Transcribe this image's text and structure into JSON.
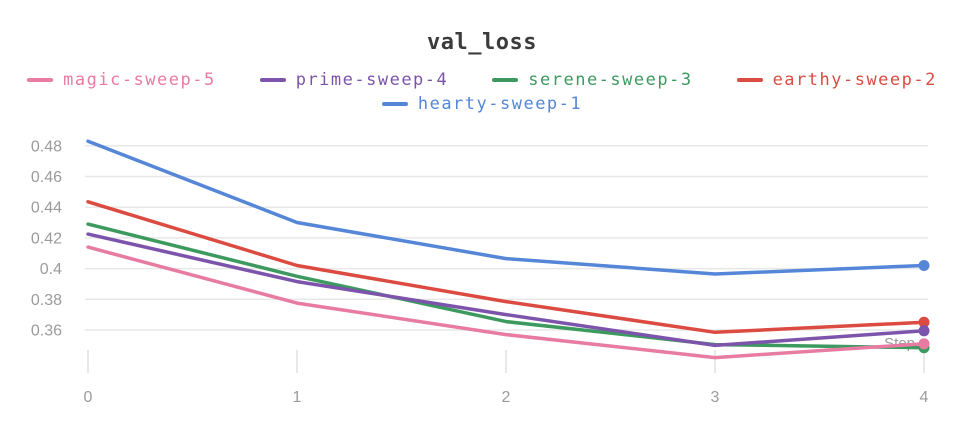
{
  "chart_data": {
    "type": "line",
    "title": "val_loss",
    "xlabel": "Step",
    "x": [
      0,
      1,
      2,
      3,
      4
    ],
    "xtick_labels": [
      "0",
      "1",
      "2",
      "3",
      "4"
    ],
    "ytick_labels": [
      "0.48",
      "0.46",
      "0.44",
      "0.42",
      "0.4",
      "0.38",
      "0.36"
    ],
    "xlim": [
      0,
      4
    ],
    "ylim": [
      0.335,
      0.488
    ],
    "grid": "horizontal",
    "legend_position": "top-two-rows",
    "endpoint_markers": true,
    "series": [
      {
        "name": "magic-sweep-5",
        "color": "#e87ba2",
        "values": [
          0.414,
          0.3775,
          0.357,
          0.342,
          0.351
        ]
      },
      {
        "name": "prime-sweep-4",
        "color": "#7d54ab",
        "values": [
          0.4225,
          0.3915,
          0.37,
          0.35,
          0.3595
        ]
      },
      {
        "name": "serene-sweep-3",
        "color": "#3d9a5f",
        "values": [
          0.429,
          0.395,
          0.3655,
          0.3505,
          0.3485
        ]
      },
      {
        "name": "earthy-sweep-2",
        "color": "#dc4b41",
        "values": [
          0.4435,
          0.402,
          0.3785,
          0.3585,
          0.365
        ]
      },
      {
        "name": "hearty-sweep-1",
        "color": "#5586d8",
        "values": [
          0.483,
          0.43,
          0.4065,
          0.3965,
          0.402
        ]
      }
    ]
  },
  "colors": {
    "title_text": "#3b3b3b",
    "axis_text": "#9b9b9b",
    "gridline": "#e8e8e8",
    "step_label": "#9a9a9a"
  }
}
